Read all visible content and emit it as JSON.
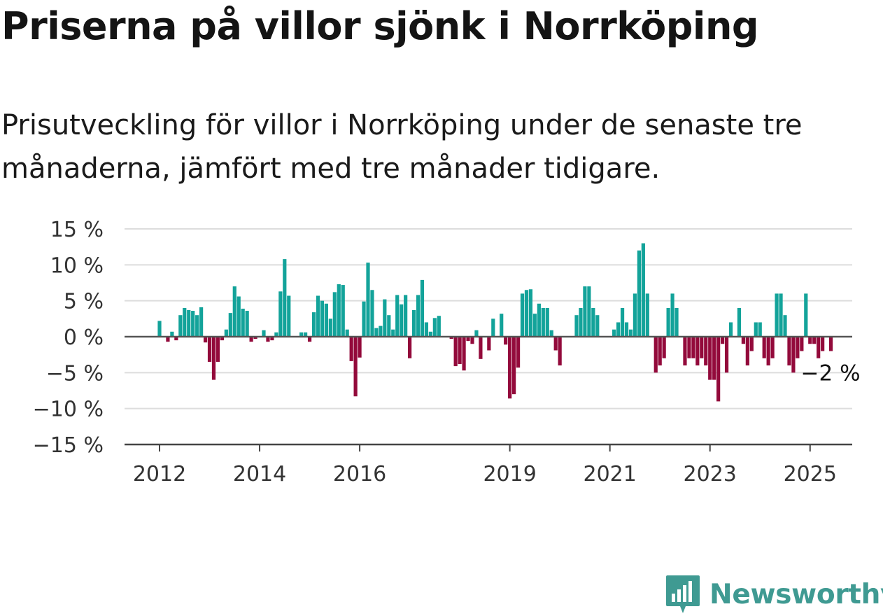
{
  "title": "Priserna på villor sjönk i Norrköping",
  "subtitle": "Prisutveckling för villor i Norrköping under de senaste tre månaderna, jämfört med tre månader tidigare.",
  "brand": {
    "name": "Newsworthy",
    "color": "#3f9a92",
    "icon": "newsworthy-logo-icon"
  },
  "colors": {
    "positive": "#13a39a",
    "negative": "#930a3b",
    "zero_line": "#555555",
    "grid": "#dddddd"
  },
  "chart_data": {
    "type": "bar",
    "ylim": [
      -15,
      15
    ],
    "yticks": [
      15,
      10,
      5,
      0,
      -5,
      -10,
      -15
    ],
    "ytick_labels": [
      "15 %",
      "10 %",
      "5 %",
      "0 %",
      "−5 %",
      "−10 %",
      "−15 %"
    ],
    "xticks": [
      {
        "year": 2012,
        "label": "2012"
      },
      {
        "year": 2014,
        "label": "2014"
      },
      {
        "year": 2016,
        "label": "2016"
      },
      {
        "year": 2019,
        "label": "2019"
      },
      {
        "year": 2021,
        "label": "2021"
      },
      {
        "year": 2023,
        "label": "2023"
      },
      {
        "year": 2025,
        "label": "2025"
      }
    ],
    "grid": true,
    "end_label": "−2 %",
    "start_month": "2012-01",
    "unit": "%",
    "values": [
      2.2,
      0,
      -0.7,
      0.7,
      -0.5,
      3.0,
      4.0,
      3.7,
      3.6,
      3.0,
      4.1,
      -0.8,
      -3.5,
      -6.0,
      -3.5,
      -0.5,
      1.0,
      3.3,
      7.0,
      5.6,
      3.9,
      3.6,
      -0.7,
      -0.3,
      0,
      0.9,
      -0.7,
      -0.5,
      0.6,
      6.3,
      10.8,
      5.7,
      0,
      0,
      0.6,
      0.6,
      -0.7,
      3.4,
      5.7,
      5.0,
      4.6,
      2.5,
      6.2,
      7.3,
      7.2,
      1.0,
      -3.4,
      -8.3,
      -2.9,
      4.9,
      10.3,
      6.5,
      1.2,
      1.5,
      5.2,
      3.0,
      1.0,
      5.8,
      4.5,
      5.8,
      -3.0,
      3.7,
      5.8,
      7.9,
      2.0,
      0.7,
      2.6,
      2.9,
      0,
      0,
      -0.3,
      -4.1,
      -3.8,
      -4.7,
      -0.6,
      -1.0,
      0.9,
      -3.1,
      0,
      -1.9,
      2.5,
      0,
      3.2,
      -1.1,
      -8.6,
      -8.0,
      -4.3,
      6.0,
      6.5,
      6.6,
      3.2,
      4.6,
      4.0,
      4.0,
      0.9,
      -1.9,
      -4.0,
      0,
      0,
      0,
      3.0,
      4.0,
      7.0,
      7.0,
      4.0,
      3.0,
      0,
      0,
      0,
      1.0,
      2.0,
      4.0,
      2.0,
      1.0,
      6.0,
      12.0,
      13.0,
      6.0,
      0,
      -5.0,
      -4.0,
      -3.0,
      4.0,
      6.0,
      4.0,
      0,
      -4.0,
      -3.0,
      -3.0,
      -4.0,
      -3.0,
      -4.0,
      -6.0,
      -6.0,
      -9.0,
      -1.0,
      -5.0,
      2.0,
      0,
      4.0,
      -1.0,
      -4.0,
      -2.0,
      2.0,
      2.0,
      -3.0,
      -4.0,
      -3.0,
      6.0,
      6.0,
      3.0,
      -4.0,
      -5.0,
      -3.0,
      -2.0,
      6.0,
      -1.0,
      -1.0,
      -3.0,
      -2.0,
      0,
      -2.0
    ]
  }
}
